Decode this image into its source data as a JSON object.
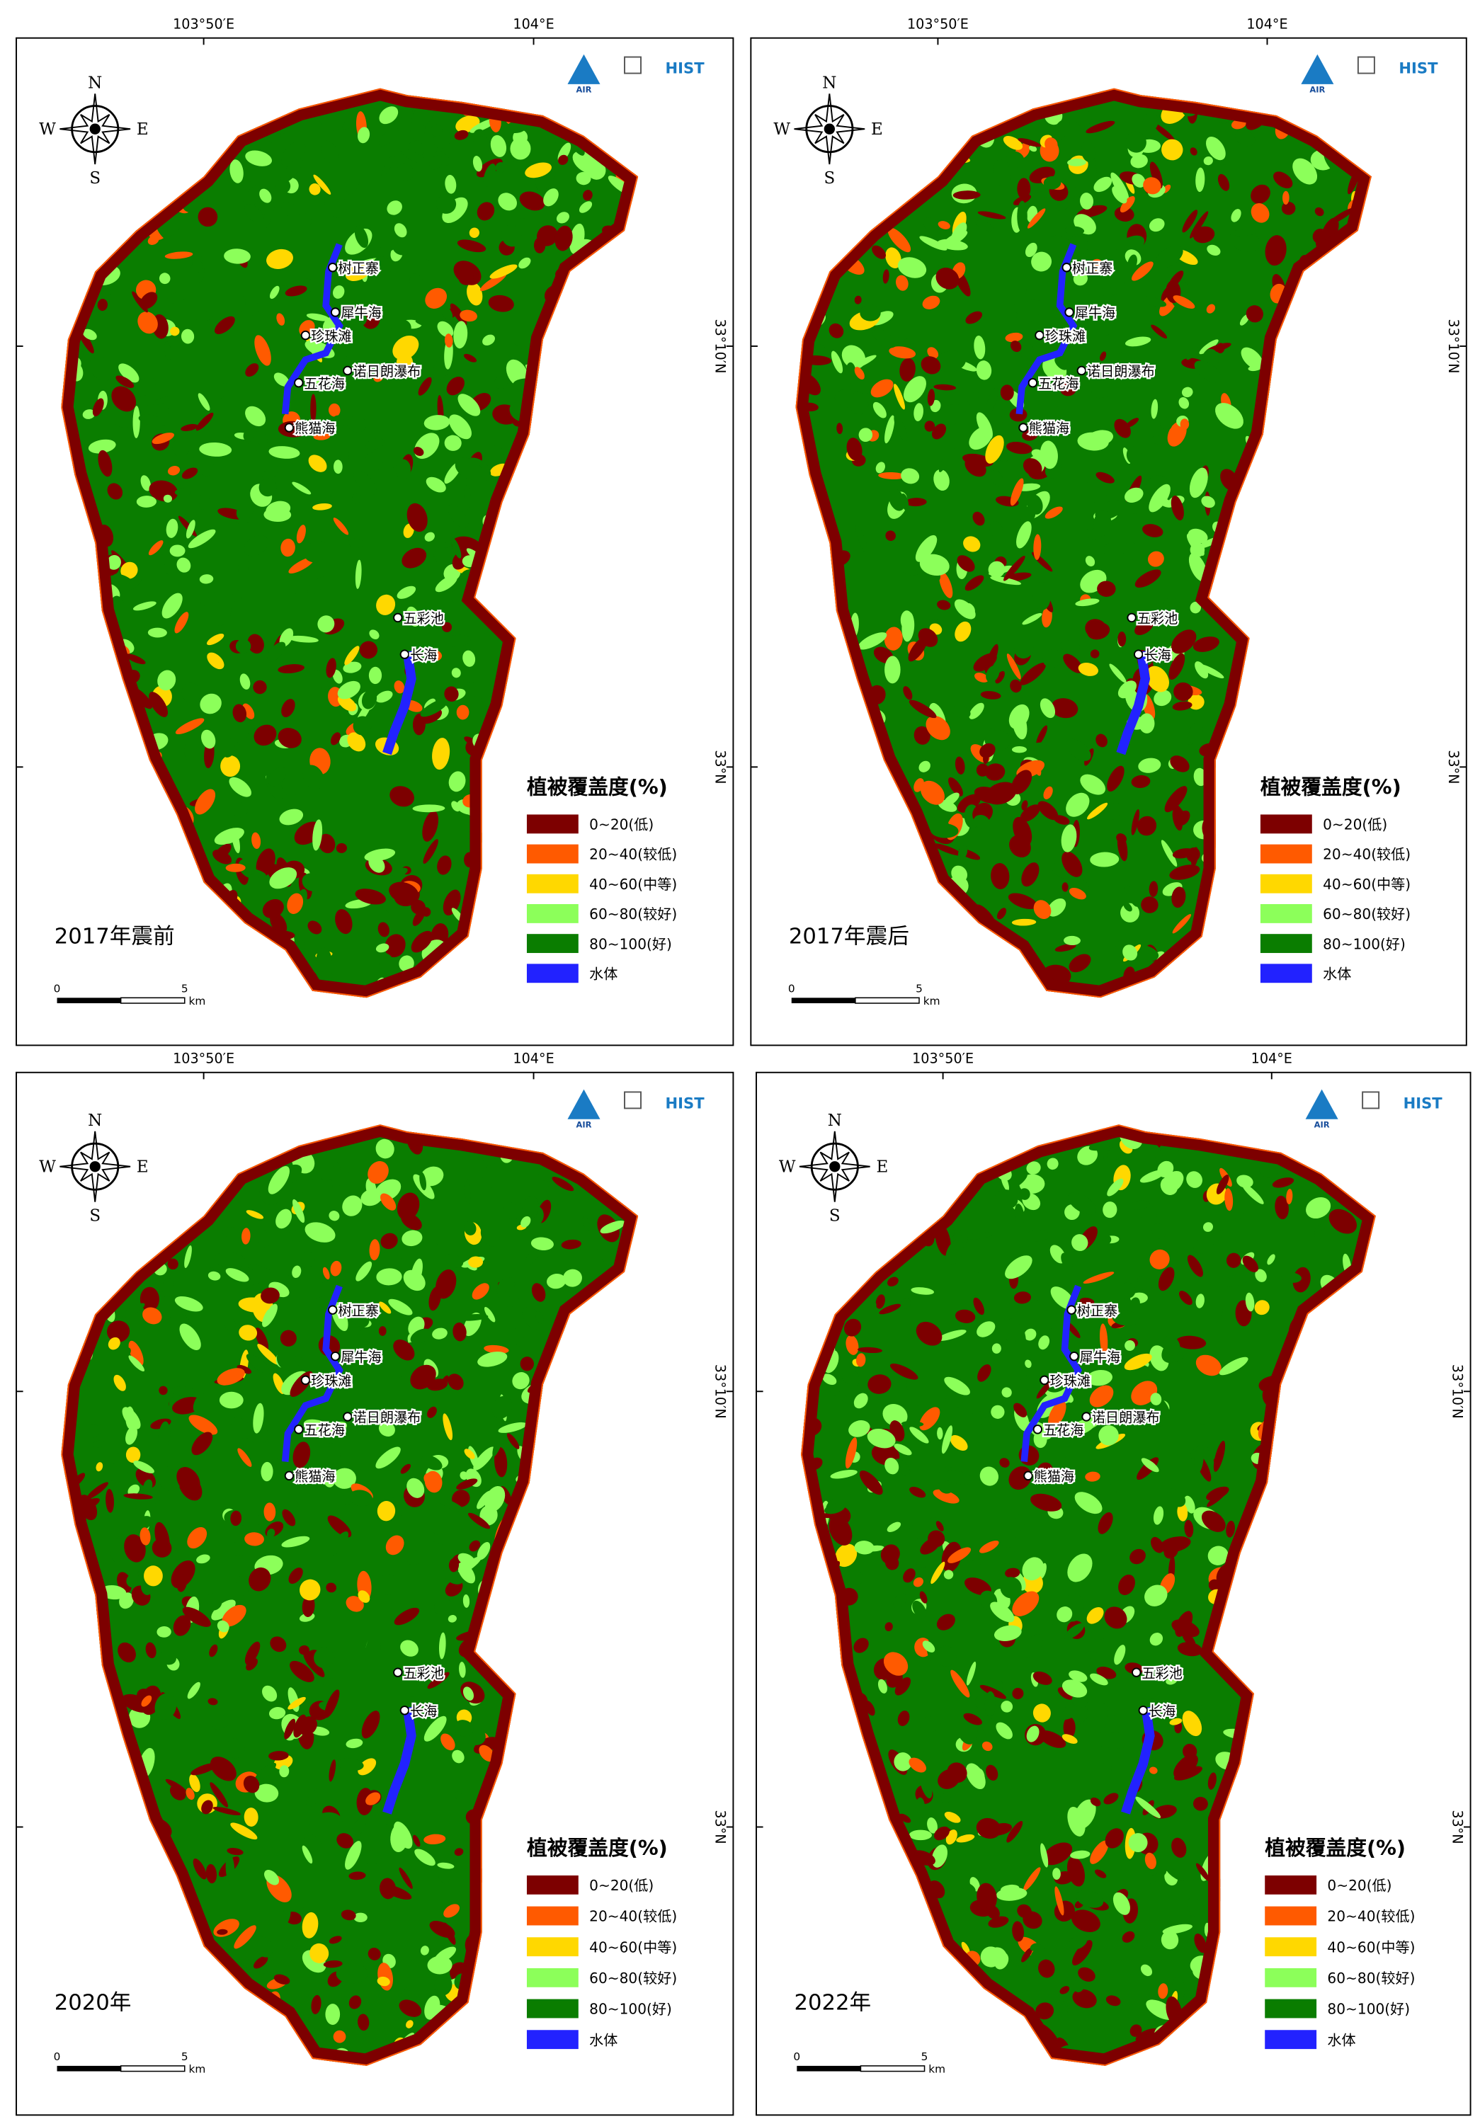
{
  "panels": [
    {
      "title": "2017年震前"
    },
    {
      "title": "2017年震后"
    },
    {
      "title": "2020年"
    },
    {
      "title": "2022年"
    }
  ],
  "places": [
    "树正寨",
    "犀牛海",
    "珍珠滩",
    "诺日朗瀑布",
    "五花海",
    "熊猫海",
    "五彩池",
    "长海"
  ],
  "lon_labels": [
    "103°50′E",
    "104°E"
  ],
  "lat_labels": [
    "33°10′N",
    "33°N"
  ],
  "compass": {
    "n": "N",
    "s": "S",
    "w": "W",
    "e": "E"
  },
  "scale": {
    "start": "0",
    "end": "5",
    "unit": "km"
  },
  "logos": {
    "air": "AIR",
    "hist": "HIST"
  },
  "legend": {
    "title": "植被覆盖度(%)",
    "items": [
      {
        "label": "0~20(低)",
        "color": "#7d0000"
      },
      {
        "label": "20~40(较低)",
        "color": "#ff5a00"
      },
      {
        "label": "40~60(中等)",
        "color": "#ffd800"
      },
      {
        "label": "60~80(较好)",
        "color": "#8cff5a"
      },
      {
        "label": "80~100(好)",
        "color": "#0a7d00"
      },
      {
        "label": "水体",
        "color": "#2222ff"
      }
    ]
  }
}
